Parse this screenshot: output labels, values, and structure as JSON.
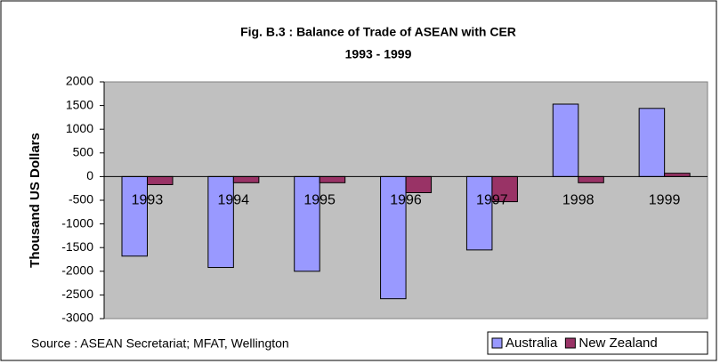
{
  "chart_data": {
    "type": "bar",
    "title": "Fig. B.3 :  Balance of Trade of ASEAN with CER",
    "subtitle": "1993 - 1999",
    "y_label": "Thousand US Dollars",
    "source": "Source :  ASEAN Secretariat; MFAT, Wellington",
    "categories": [
      "1993",
      "1994",
      "1995",
      "1996",
      "1997",
      "1998",
      "1999"
    ],
    "series": [
      {
        "name": "Australia",
        "color": "#9999ff",
        "values": [
          -1680,
          -1920,
          -2000,
          -2580,
          -1550,
          1530,
          1440
        ]
      },
      {
        "name": "New Zealand",
        "color": "#993366",
        "values": [
          -170,
          -130,
          -130,
          -340,
          -530,
          -130,
          70
        ]
      }
    ],
    "ylim": [
      -3000,
      2000
    ],
    "yticks": [
      -3000,
      -2500,
      -2000,
      -1500,
      -1000,
      -500,
      0,
      500,
      1000,
      1500,
      2000
    ],
    "grid": false,
    "legend": "bottom-right"
  }
}
